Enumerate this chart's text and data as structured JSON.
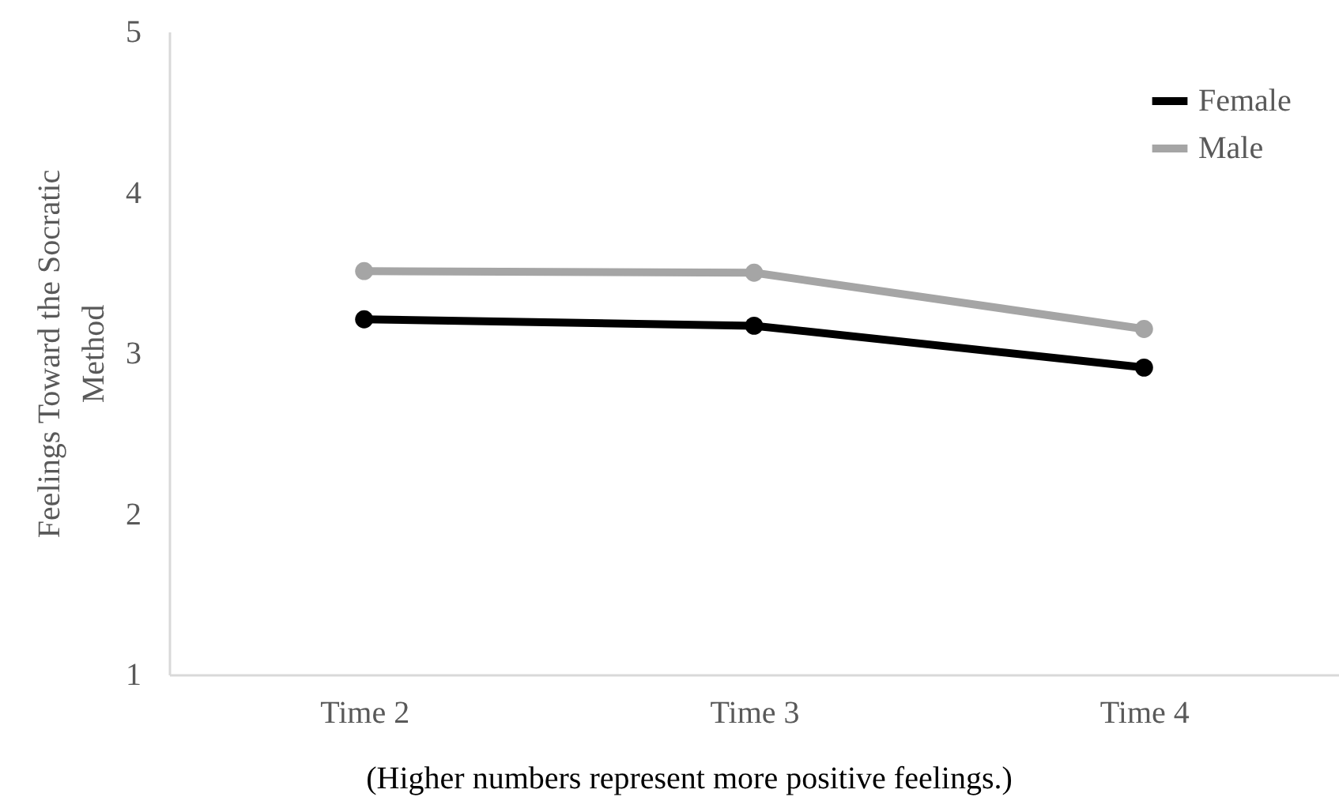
{
  "chart_data": {
    "type": "line",
    "ylabel": "Feelings Toward the Socratic Method",
    "annotations": [
      "(Higher numbers represent more positive feelings.)"
    ],
    "categories": [
      "Time 2",
      "Time 3",
      "Time 4"
    ],
    "series": [
      {
        "name": "Female",
        "color": "#000000",
        "values": [
          3.21,
          3.17,
          2.91
        ]
      },
      {
        "name": "Male",
        "color": "#a5a5a5",
        "values": [
          3.51,
          3.5,
          3.15
        ]
      }
    ],
    "ylim": [
      1,
      5
    ],
    "yticks": [
      1,
      2,
      3,
      4,
      5
    ],
    "grid": false,
    "legend": "top right",
    "marker": "circle"
  }
}
